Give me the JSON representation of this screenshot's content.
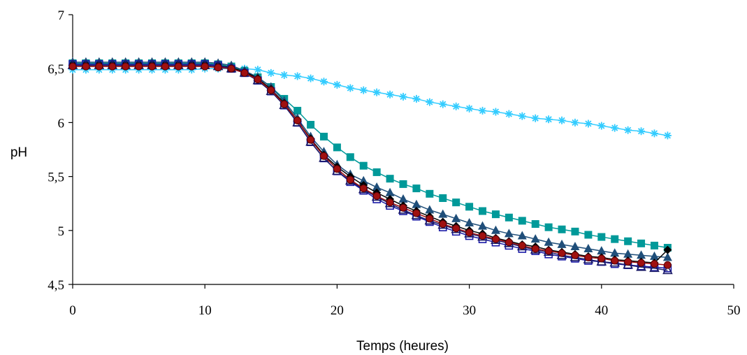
{
  "chart_data": {
    "type": "line",
    "xlabel": "Temps (heures)",
    "ylabel": "pH",
    "xlim": [
      0,
      50
    ],
    "ylim": [
      4.5,
      7
    ],
    "xticks": [
      0,
      10,
      20,
      30,
      40,
      50
    ],
    "yticks": [
      4.5,
      5,
      5.5,
      6,
      6.5,
      7
    ],
    "xtick_labels": [
      "0",
      "10",
      "20",
      "30",
      "40",
      "50"
    ],
    "ytick_labels": [
      "4,5",
      "5",
      "5,5",
      "6",
      "6,5",
      "7"
    ],
    "grid": false,
    "legend": "none",
    "x": [
      0,
      1,
      2,
      3,
      4,
      5,
      6,
      7,
      8,
      9,
      10,
      11,
      12,
      13,
      14,
      15,
      16,
      17,
      18,
      19,
      20,
      21,
      22,
      23,
      24,
      25,
      26,
      27,
      28,
      29,
      30,
      31,
      32,
      33,
      34,
      35,
      36,
      37,
      38,
      39,
      40,
      41,
      42,
      43,
      44,
      45
    ],
    "series": [
      {
        "marker": "asterisk",
        "color": "#33ccff",
        "values": [
          6.49,
          6.49,
          6.49,
          6.49,
          6.49,
          6.49,
          6.49,
          6.49,
          6.49,
          6.49,
          6.5,
          6.5,
          6.5,
          6.5,
          6.49,
          6.46,
          6.44,
          6.43,
          6.41,
          6.38,
          6.35,
          6.32,
          6.3,
          6.28,
          6.26,
          6.24,
          6.22,
          6.19,
          6.17,
          6.15,
          6.13,
          6.11,
          6.1,
          6.08,
          6.06,
          6.04,
          6.03,
          6.02,
          6.0,
          5.99,
          5.97,
          5.95,
          5.93,
          5.92,
          5.9,
          5.88
        ]
      },
      {
        "marker": "square",
        "color": "#009999",
        "values": [
          6.55,
          6.55,
          6.55,
          6.55,
          6.55,
          6.55,
          6.55,
          6.55,
          6.55,
          6.55,
          6.55,
          6.54,
          6.52,
          6.48,
          6.42,
          6.33,
          6.22,
          6.11,
          5.98,
          5.87,
          5.77,
          5.68,
          5.6,
          5.54,
          5.48,
          5.43,
          5.39,
          5.34,
          5.3,
          5.26,
          5.22,
          5.18,
          5.15,
          5.12,
          5.09,
          5.06,
          5.03,
          5.01,
          4.99,
          4.96,
          4.94,
          4.92,
          4.9,
          4.88,
          4.86,
          4.84
        ]
      },
      {
        "marker": "triangle",
        "color": "#1f4e79",
        "values": [
          6.56,
          6.56,
          6.56,
          6.56,
          6.56,
          6.56,
          6.56,
          6.56,
          6.56,
          6.56,
          6.56,
          6.55,
          6.53,
          6.48,
          6.42,
          6.33,
          6.2,
          6.04,
          5.87,
          5.73,
          5.61,
          5.52,
          5.46,
          5.4,
          5.35,
          5.29,
          5.24,
          5.19,
          5.15,
          5.11,
          5.07,
          5.04,
          5.0,
          4.97,
          4.95,
          4.92,
          4.89,
          4.87,
          4.85,
          4.83,
          4.81,
          4.79,
          4.78,
          4.77,
          4.76,
          4.75
        ]
      },
      {
        "marker": "diamond",
        "color": "#000000",
        "values": [
          6.54,
          6.54,
          6.54,
          6.54,
          6.54,
          6.54,
          6.54,
          6.54,
          6.54,
          6.54,
          6.54,
          6.53,
          6.51,
          6.47,
          6.41,
          6.31,
          6.18,
          6.02,
          5.85,
          5.7,
          5.59,
          5.5,
          5.42,
          5.35,
          5.29,
          5.23,
          5.18,
          5.13,
          5.08,
          5.04,
          5.0,
          4.97,
          4.93,
          4.9,
          4.87,
          4.85,
          4.82,
          4.8,
          4.78,
          4.76,
          4.75,
          4.73,
          4.72,
          4.71,
          4.7,
          4.82
        ]
      },
      {
        "marker": "square-open",
        "color": "#1a1aa6",
        "values": [
          6.54,
          6.54,
          6.54,
          6.54,
          6.54,
          6.54,
          6.54,
          6.54,
          6.54,
          6.54,
          6.54,
          6.53,
          6.5,
          6.46,
          6.39,
          6.29,
          6.16,
          6.0,
          5.82,
          5.67,
          5.55,
          5.45,
          5.37,
          5.29,
          5.23,
          5.18,
          5.13,
          5.08,
          5.03,
          4.99,
          4.95,
          4.92,
          4.89,
          4.86,
          4.83,
          4.81,
          4.78,
          4.76,
          4.74,
          4.72,
          4.71,
          4.69,
          4.68,
          4.67,
          4.66,
          4.65
        ]
      },
      {
        "marker": "triangle-open",
        "color": "#1a1a66",
        "values": [
          6.53,
          6.53,
          6.53,
          6.53,
          6.53,
          6.53,
          6.53,
          6.53,
          6.53,
          6.53,
          6.53,
          6.52,
          6.5,
          6.46,
          6.39,
          6.29,
          6.16,
          6.0,
          5.82,
          5.67,
          5.55,
          5.46,
          5.38,
          5.31,
          5.25,
          5.19,
          5.14,
          5.09,
          5.05,
          5.01,
          4.97,
          4.94,
          4.91,
          4.88,
          4.85,
          4.82,
          4.8,
          4.77,
          4.75,
          4.73,
          4.71,
          4.7,
          4.68,
          4.66,
          4.65,
          4.63
        ]
      },
      {
        "marker": "circle",
        "color": "#a01010",
        "values": [
          6.52,
          6.52,
          6.52,
          6.52,
          6.52,
          6.52,
          6.52,
          6.52,
          6.52,
          6.52,
          6.52,
          6.51,
          6.5,
          6.46,
          6.4,
          6.3,
          6.17,
          6.02,
          5.84,
          5.69,
          5.57,
          5.47,
          5.39,
          5.32,
          5.26,
          5.21,
          5.16,
          5.11,
          5.06,
          5.02,
          4.98,
          4.95,
          4.92,
          4.89,
          4.86,
          4.83,
          4.81,
          4.79,
          4.77,
          4.75,
          4.74,
          4.72,
          4.71,
          4.7,
          4.69,
          4.68
        ]
      }
    ]
  }
}
